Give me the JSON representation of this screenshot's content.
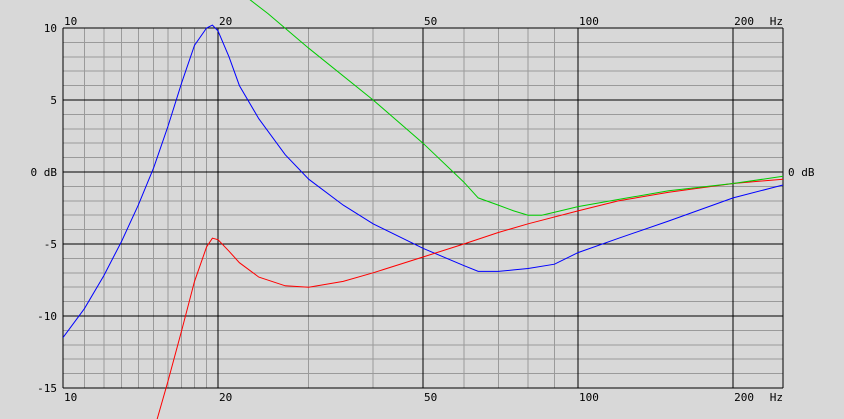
{
  "chart_data": {
    "type": "line",
    "title": "",
    "xlabel": "",
    "ylabel": "",
    "x_scale": "log",
    "xlim": [
      10,
      250
    ],
    "ylim": [
      -15,
      10
    ],
    "grid": true,
    "legend": "none",
    "colors": {
      "background": "#d8d8d8",
      "minor_grid": "#9a9a9a",
      "major_grid": "#000000",
      "series": [
        "#0000ff",
        "#ff0000",
        "#00cc00"
      ]
    },
    "x_tick_values": [
      10,
      20,
      50,
      100,
      200
    ],
    "x_tick_labels": [
      "10",
      "20",
      "50",
      "100",
      "200"
    ],
    "x_unit_label": "Hz",
    "y_tick_values": [
      10,
      5,
      0,
      -5,
      -10,
      -15
    ],
    "y_tick_labels": [
      "10",
      "5",
      "0 dB",
      "-5",
      "-10",
      "-15"
    ],
    "y_right_label": "0 dB",
    "series": [
      {
        "color": "#0000ff",
        "x": [
          10,
          11,
          12,
          13,
          14,
          15,
          16,
          17,
          18,
          19,
          19.5,
          20,
          21,
          22,
          24,
          27,
          30,
          35,
          40,
          50,
          60,
          64,
          70,
          75,
          80,
          90,
          100,
          120,
          150,
          200,
          250
        ],
        "y": [
          -11.5,
          -9.5,
          -7.2,
          -4.8,
          -2.3,
          0.3,
          3.2,
          6.2,
          8.8,
          10.0,
          10.2,
          9.8,
          8.0,
          6.0,
          3.7,
          1.2,
          -0.5,
          -2.3,
          -3.6,
          -5.3,
          -6.5,
          -6.9,
          -6.9,
          -6.8,
          -6.7,
          -6.4,
          -5.6,
          -4.6,
          -3.4,
          -1.8,
          -0.9
        ]
      },
      {
        "color": "#ff0000",
        "x": [
          15,
          16,
          17,
          18,
          19,
          19.5,
          20,
          21,
          22,
          24,
          27,
          30,
          35,
          40,
          50,
          60,
          70,
          80,
          100,
          120,
          150,
          200,
          250
        ],
        "y": [
          -18.0,
          -14.5,
          -11.0,
          -7.6,
          -5.2,
          -4.6,
          -4.7,
          -5.5,
          -6.3,
          -7.3,
          -7.9,
          -8.0,
          -7.6,
          -7.0,
          -5.9,
          -5.0,
          -4.2,
          -3.6,
          -2.7,
          -2.0,
          -1.4,
          -0.8,
          -0.5
        ]
      },
      {
        "color": "#00cc00",
        "x": [
          23,
          25,
          30,
          40,
          50,
          60,
          64,
          70,
          75,
          80,
          85,
          90,
          100,
          120,
          150,
          200,
          250
        ],
        "y": [
          12.0,
          11.0,
          8.6,
          5.0,
          2.0,
          -0.7,
          -1.8,
          -2.3,
          -2.7,
          -3.0,
          -3.0,
          -2.8,
          -2.4,
          -1.9,
          -1.3,
          -0.8,
          -0.3
        ]
      }
    ]
  }
}
